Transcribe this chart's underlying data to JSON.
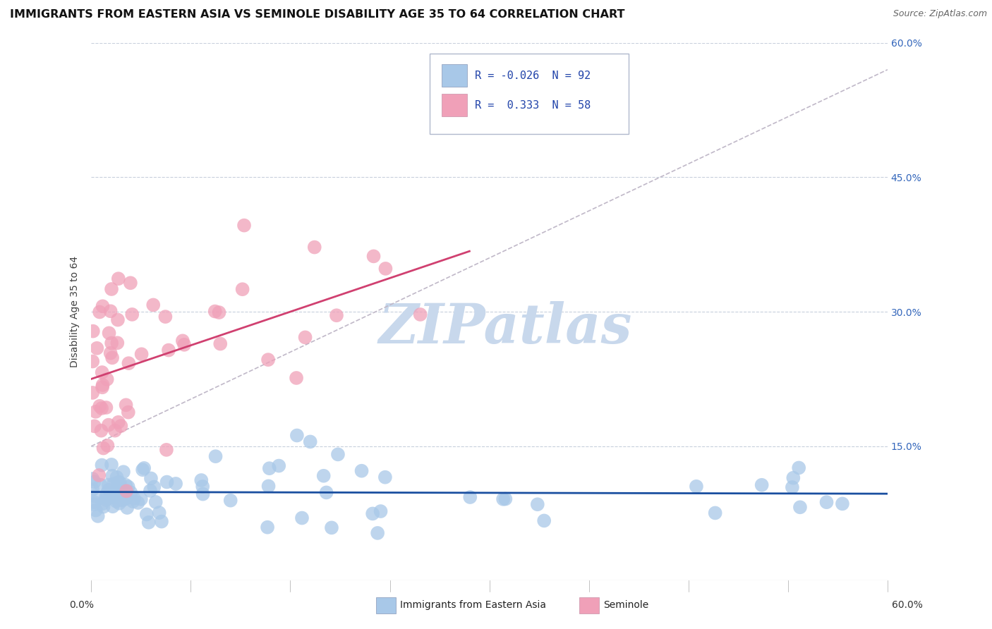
{
  "title": "IMMIGRANTS FROM EASTERN ASIA VS SEMINOLE DISABILITY AGE 35 TO 64 CORRELATION CHART",
  "source": "Source: ZipAtlas.com",
  "ylabel": "Disability Age 35 to 64",
  "xmin": 0.0,
  "xmax": 0.6,
  "ymin": 0.0,
  "ymax": 0.6,
  "yticks": [
    0.15,
    0.3,
    0.45,
    0.6
  ],
  "ytick_labels": [
    "15.0%",
    "30.0%",
    "45.0%",
    "60.0%"
  ],
  "legend_label1": "Immigrants from Eastern Asia",
  "legend_label2": "Seminole",
  "R1": -0.026,
  "N1": 92,
  "R2": 0.333,
  "N2": 58,
  "color_blue": "#a8c8e8",
  "color_pink": "#f0a0b8",
  "line_blue": "#1a4fa0",
  "line_pink": "#d04070",
  "dash_color": "#c0b8c8",
  "watermark_color": "#c8d8ec",
  "background_color": "#ffffff",
  "grid_color": "#c8d0dc"
}
